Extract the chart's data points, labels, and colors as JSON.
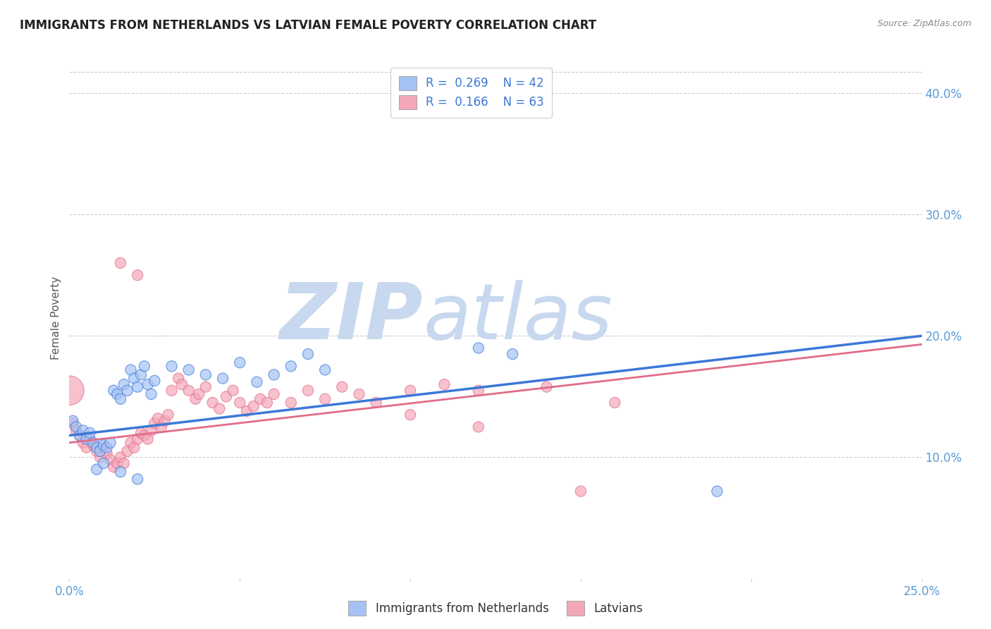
{
  "title": "IMMIGRANTS FROM NETHERLANDS VS LATVIAN FEMALE POVERTY CORRELATION CHART",
  "source": "Source: ZipAtlas.com",
  "ylabel": "Female Poverty",
  "ytick_labels": [
    "10.0%",
    "20.0%",
    "30.0%",
    "40.0%"
  ],
  "ytick_values": [
    0.1,
    0.2,
    0.3,
    0.4
  ],
  "xlim": [
    0.0,
    0.25
  ],
  "ylim": [
    0.0,
    0.43
  ],
  "legend_r1": "R = 0.269",
  "legend_n1": "N = 42",
  "legend_r2": "R = 0.166",
  "legend_n2": "N = 63",
  "color_blue": "#a4c2f4",
  "color_pink": "#f4a7b9",
  "line_blue": "#3c78d8",
  "line_pink": "#e06c88",
  "watermark_color": "#dce8f8",
  "background_color": "#ffffff",
  "grid_color": "#cccccc",
  "tick_color": "#5b9bd5",
  "scatter_blue": [
    [
      0.001,
      0.13
    ],
    [
      0.002,
      0.125
    ],
    [
      0.003,
      0.118
    ],
    [
      0.004,
      0.122
    ],
    [
      0.005,
      0.115
    ],
    [
      0.006,
      0.12
    ],
    [
      0.007,
      0.112
    ],
    [
      0.008,
      0.108
    ],
    [
      0.009,
      0.105
    ],
    [
      0.01,
      0.11
    ],
    [
      0.011,
      0.108
    ],
    [
      0.012,
      0.112
    ],
    [
      0.013,
      0.155
    ],
    [
      0.014,
      0.152
    ],
    [
      0.015,
      0.148
    ],
    [
      0.016,
      0.16
    ],
    [
      0.017,
      0.155
    ],
    [
      0.018,
      0.172
    ],
    [
      0.019,
      0.165
    ],
    [
      0.02,
      0.158
    ],
    [
      0.021,
      0.168
    ],
    [
      0.022,
      0.175
    ],
    [
      0.023,
      0.16
    ],
    [
      0.024,
      0.152
    ],
    [
      0.025,
      0.163
    ],
    [
      0.03,
      0.175
    ],
    [
      0.035,
      0.172
    ],
    [
      0.04,
      0.168
    ],
    [
      0.045,
      0.165
    ],
    [
      0.05,
      0.178
    ],
    [
      0.055,
      0.162
    ],
    [
      0.06,
      0.168
    ],
    [
      0.065,
      0.175
    ],
    [
      0.07,
      0.185
    ],
    [
      0.075,
      0.172
    ],
    [
      0.12,
      0.19
    ],
    [
      0.13,
      0.185
    ],
    [
      0.19,
      0.072
    ],
    [
      0.008,
      0.09
    ],
    [
      0.01,
      0.095
    ],
    [
      0.015,
      0.088
    ],
    [
      0.02,
      0.082
    ]
  ],
  "scatter_blue_sizes": [
    120,
    120,
    120,
    120,
    120,
    120,
    120,
    120,
    120,
    120,
    120,
    120,
    120,
    120,
    120,
    120,
    120,
    120,
    120,
    120,
    120,
    120,
    120,
    120,
    120,
    120,
    120,
    120,
    120,
    120,
    120,
    120,
    120,
    120,
    120,
    120,
    120,
    120,
    120,
    120,
    120,
    120
  ],
  "scatter_pink": [
    [
      0.0,
      0.155
    ],
    [
      0.001,
      0.128
    ],
    [
      0.002,
      0.122
    ],
    [
      0.003,
      0.118
    ],
    [
      0.004,
      0.112
    ],
    [
      0.005,
      0.108
    ],
    [
      0.006,
      0.115
    ],
    [
      0.007,
      0.11
    ],
    [
      0.008,
      0.105
    ],
    [
      0.009,
      0.1
    ],
    [
      0.01,
      0.108
    ],
    [
      0.011,
      0.103
    ],
    [
      0.012,
      0.098
    ],
    [
      0.013,
      0.092
    ],
    [
      0.014,
      0.095
    ],
    [
      0.015,
      0.1
    ],
    [
      0.016,
      0.095
    ],
    [
      0.017,
      0.105
    ],
    [
      0.018,
      0.112
    ],
    [
      0.019,
      0.108
    ],
    [
      0.02,
      0.115
    ],
    [
      0.021,
      0.12
    ],
    [
      0.022,
      0.118
    ],
    [
      0.023,
      0.115
    ],
    [
      0.024,
      0.122
    ],
    [
      0.025,
      0.128
    ],
    [
      0.026,
      0.132
    ],
    [
      0.027,
      0.125
    ],
    [
      0.028,
      0.13
    ],
    [
      0.029,
      0.135
    ],
    [
      0.03,
      0.155
    ],
    [
      0.032,
      0.165
    ],
    [
      0.033,
      0.16
    ],
    [
      0.035,
      0.155
    ],
    [
      0.037,
      0.148
    ],
    [
      0.038,
      0.152
    ],
    [
      0.04,
      0.158
    ],
    [
      0.042,
      0.145
    ],
    [
      0.044,
      0.14
    ],
    [
      0.046,
      0.15
    ],
    [
      0.048,
      0.155
    ],
    [
      0.05,
      0.145
    ],
    [
      0.052,
      0.138
    ],
    [
      0.054,
      0.142
    ],
    [
      0.056,
      0.148
    ],
    [
      0.058,
      0.145
    ],
    [
      0.06,
      0.152
    ],
    [
      0.015,
      0.26
    ],
    [
      0.02,
      0.25
    ],
    [
      0.065,
      0.145
    ],
    [
      0.07,
      0.155
    ],
    [
      0.075,
      0.148
    ],
    [
      0.08,
      0.158
    ],
    [
      0.085,
      0.152
    ],
    [
      0.09,
      0.145
    ],
    [
      0.1,
      0.155
    ],
    [
      0.11,
      0.16
    ],
    [
      0.12,
      0.155
    ],
    [
      0.14,
      0.158
    ],
    [
      0.16,
      0.145
    ],
    [
      0.1,
      0.135
    ],
    [
      0.12,
      0.125
    ],
    [
      0.15,
      0.072
    ]
  ],
  "scatter_pink_sizes": [
    900,
    120,
    120,
    120,
    120,
    120,
    120,
    120,
    120,
    120,
    120,
    120,
    120,
    120,
    120,
    120,
    120,
    120,
    120,
    120,
    120,
    120,
    120,
    120,
    120,
    120,
    120,
    120,
    120,
    120,
    120,
    120,
    120,
    120,
    120,
    120,
    120,
    120,
    120,
    120,
    120,
    120,
    120,
    120,
    120,
    120,
    120,
    120,
    120,
    120,
    120,
    120,
    120,
    120,
    120,
    120,
    120,
    120,
    120,
    120,
    120,
    120,
    120
  ],
  "blue_trend_x": [
    0.0,
    0.25
  ],
  "blue_trend_y": [
    0.118,
    0.2
  ],
  "pink_trend_x": [
    0.0,
    0.25
  ],
  "pink_trend_y": [
    0.112,
    0.193
  ]
}
